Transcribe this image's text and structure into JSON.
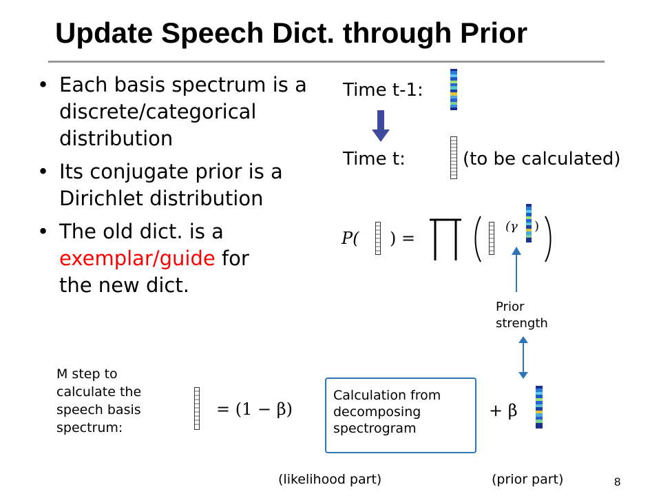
{
  "slide": {
    "title": "Update Speech Dict. through Prior",
    "page_number": "8"
  },
  "bullets": [
    "Each basis spectrum is a discrete/categorical distribution",
    "Its conjugate prior is a Dirichlet distribution"
  ],
  "bullet3": {
    "before": "The old dict. is a ",
    "highlight": "exemplar/guide",
    "after": " for the new dict."
  },
  "right": {
    "time_prev_label": "Time t-1:",
    "time_curr_label": "Time t:",
    "to_be_calculated": "(to be calculated)"
  },
  "equation": {
    "p_open": "P(",
    "p_close": ") =",
    "gamma_open": "(γ",
    "gamma_close": ")"
  },
  "prior_strength": "Prior strength",
  "m_step": {
    "description": "M step to calculate the speech basis spectrum:",
    "eq_left": "= (1 − β)",
    "box_text": "Calculation from decomposing spectrogram",
    "eq_right": "+ β"
  },
  "captions": {
    "likelihood": "(likelihood part)",
    "prior": "(prior part)"
  },
  "colors": {
    "accent_red": "#ff0000",
    "box_border": "#2e75b6",
    "arrow_blue": "#2e75b6",
    "arrow_dark": "#3f4a9e"
  }
}
